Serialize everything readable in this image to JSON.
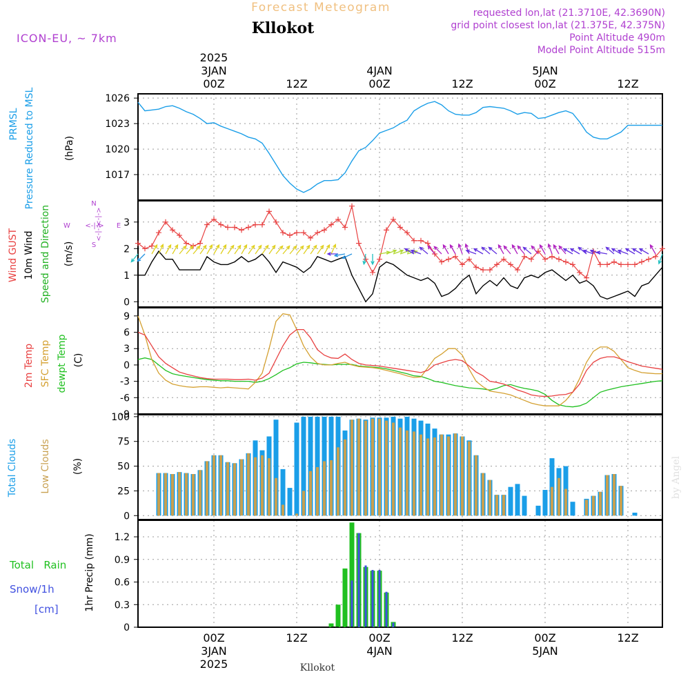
{
  "header": {
    "product": "Forecast Meteogram",
    "location": "Kllokot",
    "model": "ICON-EU, ~ 7km",
    "requested": "requested lon,lat (21.3710E, 42.3690N)",
    "grid_point": "grid point closest lon,lat (21.375E, 42.375N)",
    "point_altitude": "Point Altitude 490m",
    "model_altitude": "Model Point Altitude 515m",
    "footer_location": "Kllokot",
    "watermark": "by Angel"
  },
  "colors": {
    "pressure": "#1a9ee8",
    "gust": "#e84040",
    "wind": "#000000",
    "dir_label": "#20b020",
    "temp2m": "#e84040",
    "sfc": "#d4a030",
    "dewpt": "#20c020",
    "total_clouds": "#1a9ee8",
    "low_clouds": "#c8a050",
    "rain": "#20c020",
    "snow": "#4050e0",
    "header_orange": "#f0c080",
    "header_purple": "#b040d0"
  },
  "time_axis": {
    "top_dates": [
      {
        "hour": 0,
        "lines": [
          "2025",
          "3JAN",
          "00Z"
        ]
      },
      {
        "hour": 12,
        "lines": [
          "12Z"
        ]
      },
      {
        "hour": 24,
        "lines": [
          "4JAN",
          "00Z"
        ]
      },
      {
        "hour": 36,
        "lines": [
          "12Z"
        ]
      },
      {
        "hour": 48,
        "lines": [
          "5JAN",
          "00Z"
        ]
      },
      {
        "hour": 60,
        "lines": [
          "12Z"
        ]
      }
    ],
    "bottom_dates": [
      {
        "hour": 0,
        "lines": [
          "00Z",
          "3JAN",
          "2025"
        ]
      },
      {
        "hour": 12,
        "lines": [
          "12Z"
        ]
      },
      {
        "hour": 24,
        "lines": [
          "00Z",
          "4JAN"
        ]
      },
      {
        "hour": 36,
        "lines": [
          "12Z"
        ]
      },
      {
        "hour": 48,
        "lines": [
          "00Z",
          "5JAN"
        ]
      },
      {
        "hour": 60,
        "lines": [
          "12Z"
        ]
      }
    ],
    "range_hours": [
      -11,
      65
    ]
  },
  "panel_labels": {
    "pressure": [
      "PRMSL",
      "Pressure Reduced to MSL"
    ],
    "pressure_unit": "(hPa)",
    "wind_gust": "Wind GUST",
    "wind_10m": "10m Wind",
    "wind_dir": "Speed and Direction",
    "wind_unit": "(m/s)",
    "compass_n": "N",
    "compass_s": "S",
    "compass_w": "W",
    "compass_e": "E",
    "compass_axis": "<-|->",
    "temp_2m": "2m Temp",
    "temp_sfc": "SFC Temp",
    "temp_dew": "dewpt Temp",
    "temp_unit": "(C)",
    "clouds_total": "Total Clouds",
    "clouds_low": "Low Clouds",
    "clouds_unit": "(%)",
    "precip_rain": "Total   Rain",
    "precip_snow": "Snow/1h",
    "precip_snow_unit": "[cm]",
    "precip_axis": "1hr Precip (mm)"
  },
  "chart_data": [
    {
      "type": "line",
      "name": "pressure",
      "ylim": [
        1014,
        1026.5
      ],
      "yticks": [
        1017,
        1020,
        1023,
        1026
      ],
      "x": [
        -11,
        -10,
        -9,
        -8,
        -7,
        -6,
        -5,
        -4,
        -3,
        -2,
        -1,
        0,
        1,
        2,
        3,
        4,
        5,
        6,
        7,
        8,
        9,
        10,
        11,
        12,
        13,
        14,
        15,
        16,
        17,
        18,
        19,
        20,
        21,
        22,
        23,
        24,
        25,
        26,
        27,
        28,
        29,
        30,
        31,
        32,
        33,
        34,
        35,
        36,
        37,
        38,
        39,
        40,
        41,
        42,
        43,
        44,
        45,
        46,
        47,
        48,
        49,
        50,
        51,
        52,
        53,
        54,
        55,
        56,
        57,
        58,
        59,
        60,
        61,
        62,
        63,
        64,
        65
      ],
      "y": [
        1025.5,
        1024.5,
        1024.6,
        1024.7,
        1025.0,
        1025.1,
        1024.8,
        1024.4,
        1024.1,
        1023.6,
        1023.0,
        1023.1,
        1022.7,
        1022.4,
        1022.1,
        1021.8,
        1021.4,
        1021.2,
        1020.7,
        1019.5,
        1018.2,
        1016.9,
        1016.0,
        1015.3,
        1014.9,
        1015.3,
        1015.9,
        1016.3,
        1016.3,
        1016.4,
        1017.2,
        1018.6,
        1019.8,
        1020.2,
        1021.0,
        1021.9,
        1022.2,
        1022.5,
        1023.0,
        1023.4,
        1024.5,
        1025.0,
        1025.4,
        1025.6,
        1025.2,
        1024.5,
        1024.1,
        1024.0,
        1024.0,
        1024.3,
        1024.9,
        1025.0,
        1024.9,
        1024.8,
        1024.5,
        1024.1,
        1024.3,
        1024.2,
        1023.6,
        1023.7,
        1024.0,
        1024.3,
        1024.5,
        1024.2,
        1023.2,
        1022.0,
        1021.4,
        1021.2,
        1021.2,
        1021.6,
        1022.0,
        1022.8,
        1022.8,
        1022.8,
        1022.8,
        1022.8,
        1022.8
      ]
    },
    {
      "type": "line",
      "name": "wind",
      "ylim": [
        -0.2,
        3.8
      ],
      "yticks": [
        0,
        1,
        2,
        3
      ],
      "gust_x": [
        -11,
        -10,
        -9,
        -8,
        -7,
        -6,
        -5,
        -4,
        -3,
        -2,
        -1,
        0,
        1,
        2,
        3,
        4,
        5,
        6,
        7,
        8,
        9,
        10,
        11,
        12,
        13,
        14,
        15,
        16,
        17,
        18,
        19,
        20,
        21,
        22,
        23,
        24,
        25,
        26,
        27,
        28,
        29,
        30,
        31,
        32,
        33,
        34,
        35,
        36,
        37,
        38,
        39,
        40,
        41,
        42,
        43,
        44,
        45,
        46,
        47,
        48,
        49,
        50,
        51,
        52,
        53,
        54,
        55,
        56,
        57,
        58,
        59,
        60,
        61,
        62,
        63,
        64,
        65
      ],
      "gust": [
        2.2,
        2.0,
        2.1,
        2.6,
        3.0,
        2.7,
        2.5,
        2.2,
        2.1,
        2.2,
        2.9,
        3.1,
        2.9,
        2.8,
        2.8,
        2.7,
        2.8,
        2.9,
        2.9,
        3.4,
        3.0,
        2.6,
        2.5,
        2.6,
        2.6,
        2.4,
        2.6,
        2.7,
        2.9,
        3.1,
        2.8,
        3.6,
        2.2,
        1.6,
        1.1,
        1.6,
        2.7,
        3.1,
        2.8,
        2.6,
        2.3,
        2.3,
        2.2,
        1.8,
        1.5,
        1.6,
        1.7,
        1.4,
        1.6,
        1.3,
        1.2,
        1.2,
        1.4,
        1.6,
        1.4,
        1.2,
        1.7,
        1.6,
        1.9,
        1.6,
        1.7,
        1.6,
        1.5,
        1.4,
        1.1,
        0.9,
        1.9,
        1.4,
        1.4,
        1.5,
        1.4,
        1.4,
        1.4,
        1.5,
        1.6,
        1.7,
        2.0
      ],
      "wind_x": [
        -11,
        -10,
        -9,
        -8,
        -7,
        -6,
        -5,
        -4,
        -3,
        -2,
        -1,
        0,
        1,
        2,
        3,
        4,
        5,
        6,
        7,
        8,
        9,
        10,
        11,
        12,
        13,
        14,
        15,
        16,
        17,
        18,
        19,
        20,
        21,
        22,
        23,
        24,
        25,
        26,
        27,
        28,
        29,
        30,
        31,
        32,
        33,
        34,
        35,
        36,
        37,
        38,
        39,
        40,
        41,
        42,
        43,
        44,
        45,
        46,
        47,
        48,
        49,
        50,
        51,
        52,
        53,
        54,
        55,
        56,
        57,
        58,
        59,
        60,
        61,
        62,
        63,
        64,
        65
      ],
      "wind": [
        1.0,
        1.0,
        1.5,
        1.9,
        1.6,
        1.6,
        1.2,
        1.2,
        1.2,
        1.2,
        1.7,
        1.5,
        1.4,
        1.4,
        1.5,
        1.7,
        1.5,
        1.6,
        1.8,
        1.5,
        1.1,
        1.5,
        1.4,
        1.3,
        1.1,
        1.3,
        1.7,
        1.6,
        1.5,
        1.6,
        1.7,
        1.0,
        0.5,
        0.0,
        0.3,
        1.3,
        1.5,
        1.4,
        1.2,
        1.0,
        0.9,
        0.8,
        0.9,
        0.7,
        0.2,
        0.3,
        0.5,
        0.8,
        1.0,
        0.3,
        0.6,
        0.8,
        0.6,
        0.9,
        0.6,
        0.5,
        0.9,
        1.0,
        0.9,
        1.1,
        1.2,
        1.0,
        0.8,
        1.0,
        0.7,
        0.8,
        0.6,
        0.2,
        0.1,
        0.2,
        0.3,
        0.4,
        0.2,
        0.6,
        0.7,
        1.0,
        1.3
      ],
      "dirs_x": [
        -11,
        -10,
        -9,
        -8,
        -7,
        -6,
        -5,
        -4,
        -3,
        -2,
        -1,
        0,
        1,
        2,
        3,
        4,
        5,
        6,
        7,
        8,
        9,
        10,
        11,
        12,
        13,
        14,
        15,
        16,
        17,
        18,
        19,
        20,
        22,
        23,
        24,
        25,
        26,
        27,
        28,
        29,
        30,
        31,
        32,
        33,
        34,
        35,
        36,
        37,
        38,
        39,
        40,
        41,
        42,
        43,
        44,
        45,
        46,
        47,
        48,
        49,
        50,
        51,
        52,
        53,
        54,
        55,
        56,
        57,
        58,
        59,
        60,
        61,
        62,
        63,
        64,
        65
      ],
      "dirs_deg": [
        220,
        225,
        30,
        25,
        30,
        30,
        40,
        40,
        40,
        35,
        30,
        30,
        30,
        35,
        35,
        30,
        35,
        35,
        35,
        35,
        40,
        40,
        40,
        40,
        35,
        35,
        35,
        30,
        25,
        270,
        260,
        245,
        190,
        180,
        80,
        70,
        70,
        70,
        75,
        300,
        290,
        310,
        320,
        315,
        330,
        330,
        340,
        340,
        290,
        300,
        310,
        310,
        330,
        320,
        330,
        320,
        310,
        320,
        330,
        340,
        330,
        320,
        300,
        300,
        310,
        290,
        290,
        280,
        310,
        300,
        290,
        300,
        300,
        300,
        330,
        200
      ]
    },
    {
      "type": "line",
      "name": "temperature",
      "ylim": [
        -9,
        10.5
      ],
      "yticks": [
        -9,
        -6,
        -3,
        0,
        3,
        6,
        9
      ],
      "x": [
        -11,
        -10,
        -9,
        -8,
        -7,
        -6,
        -5,
        -4,
        -3,
        -2,
        -1,
        0,
        1,
        2,
        3,
        4,
        5,
        6,
        7,
        8,
        9,
        10,
        11,
        12,
        13,
        14,
        15,
        16,
        17,
        18,
        19,
        20,
        21,
        22,
        23,
        24,
        25,
        26,
        27,
        28,
        29,
        30,
        31,
        32,
        33,
        34,
        35,
        36,
        37,
        38,
        39,
        40,
        41,
        42,
        43,
        44,
        45,
        46,
        47,
        48,
        49,
        50,
        51,
        52,
        53,
        54,
        55,
        56,
        57,
        58,
        59,
        60,
        61,
        62,
        63,
        64,
        65
      ],
      "t2m": [
        6.0,
        5.5,
        3.5,
        1.5,
        0.3,
        -0.5,
        -1.3,
        -1.7,
        -2.0,
        -2.3,
        -2.5,
        -2.6,
        -2.6,
        -2.6,
        -2.7,
        -2.7,
        -2.6,
        -2.8,
        -2.4,
        -1.5,
        1.0,
        3.5,
        5.5,
        6.5,
        6.5,
        5.0,
        2.8,
        1.8,
        1.3,
        1.2,
        2.0,
        1.0,
        0.3,
        0.0,
        -0.1,
        -0.2,
        -0.4,
        -0.6,
        -0.8,
        -1.0,
        -1.2,
        -1.4,
        -1.0,
        0.0,
        0.4,
        0.8,
        1.0,
        0.8,
        -0.2,
        -1.3,
        -2.0,
        -3.0,
        -3.2,
        -3.5,
        -4.0,
        -4.6,
        -5.0,
        -5.5,
        -5.7,
        -5.8,
        -5.7,
        -5.5,
        -5.4,
        -5.0,
        -3.5,
        -1.0,
        0.5,
        1.2,
        1.5,
        1.5,
        1.1,
        0.6,
        0.2,
        -0.2,
        -0.4,
        -0.6,
        -0.8
      ],
      "sfc": [
        9.0,
        5.5,
        1.0,
        -1.5,
        -2.8,
        -3.5,
        -3.8,
        -4.0,
        -4.1,
        -4.0,
        -4.0,
        -4.1,
        -4.2,
        -4.1,
        -4.2,
        -4.3,
        -4.4,
        -3.2,
        -1.5,
        3.0,
        8.0,
        9.4,
        9.2,
        6.5,
        3.5,
        1.5,
        0.3,
        0.0,
        0.0,
        0.3,
        0.5,
        0.0,
        -0.3,
        -0.4,
        -0.5,
        -0.7,
        -1.0,
        -1.3,
        -1.6,
        -2.0,
        -2.3,
        -2.2,
        -0.5,
        1.2,
        2.0,
        3.0,
        3.0,
        1.8,
        -0.8,
        -3.0,
        -4.0,
        -4.8,
        -5.0,
        -5.2,
        -5.5,
        -6.0,
        -6.5,
        -7.0,
        -7.3,
        -7.5,
        -7.5,
        -7.5,
        -6.5,
        -5.0,
        -2.5,
        0.5,
        2.5,
        3.3,
        3.3,
        2.5,
        1.0,
        -0.5,
        -1.0,
        -1.4,
        -1.5,
        -1.6,
        -1.6
      ],
      "dew": [
        1.0,
        1.3,
        1.0,
        0.0,
        -1.0,
        -1.6,
        -1.9,
        -2.1,
        -2.3,
        -2.5,
        -2.7,
        -2.8,
        -2.9,
        -2.9,
        -3.0,
        -3.0,
        -3.0,
        -3.2,
        -3.0,
        -2.5,
        -1.8,
        -1.0,
        -0.5,
        0.2,
        0.5,
        0.4,
        0.2,
        0.1,
        0.0,
        0.1,
        0.1,
        0.1,
        -0.2,
        -0.3,
        -0.4,
        -0.5,
        -0.7,
        -1.0,
        -1.3,
        -1.6,
        -2.0,
        -2.1,
        -2.5,
        -3.0,
        -3.2,
        -3.5,
        -3.8,
        -4.0,
        -4.2,
        -4.3,
        -4.4,
        -4.6,
        -4.3,
        -3.8,
        -3.6,
        -4.0,
        -4.3,
        -4.5,
        -4.8,
        -5.4,
        -6.5,
        -7.3,
        -7.6,
        -7.7,
        -7.5,
        -7.0,
        -6.0,
        -5.0,
        -4.6,
        -4.3,
        -4.0,
        -3.8,
        -3.6,
        -3.4,
        -3.2,
        -3.0,
        -2.9
      ]
    },
    {
      "type": "bar",
      "name": "clouds",
      "ylim": [
        -4,
        102
      ],
      "yticks": [
        0,
        25,
        50,
        75,
        100
      ],
      "x": [
        -11,
        -10,
        -9,
        -8,
        -7,
        -6,
        -5,
        -4,
        -3,
        -2,
        -1,
        0,
        1,
        2,
        3,
        4,
        5,
        6,
        7,
        8,
        9,
        10,
        11,
        12,
        13,
        14,
        15,
        16,
        17,
        18,
        19,
        20,
        21,
        22,
        23,
        24,
        25,
        26,
        27,
        28,
        29,
        30,
        31,
        32,
        33,
        34,
        35,
        36,
        37,
        38,
        39,
        40,
        41,
        42,
        43,
        44,
        45,
        46,
        47,
        48,
        49,
        50,
        51,
        52,
        53,
        54,
        55,
        56,
        57,
        58,
        59,
        60,
        61,
        62,
        63,
        64,
        65
      ],
      "total": [
        0,
        0,
        0,
        43,
        43,
        42,
        44,
        43,
        42,
        46,
        55,
        61,
        61,
        54,
        53,
        57,
        63,
        76,
        66,
        80,
        97,
        47,
        28,
        94,
        100,
        100,
        100,
        100,
        100,
        100,
        86,
        97,
        98,
        97,
        99,
        99,
        99,
        100,
        98,
        100,
        98,
        96,
        93,
        88,
        82,
        82,
        83,
        80,
        76,
        61,
        43,
        36,
        21,
        21,
        29,
        32,
        20,
        0,
        10,
        26,
        58,
        48,
        50,
        14,
        0,
        17,
        20,
        24,
        41,
        42,
        30,
        0,
        3,
        0,
        0,
        0,
        0
      ],
      "low": [
        0,
        0,
        0,
        43,
        43,
        42,
        44,
        43,
        42,
        46,
        55,
        61,
        61,
        54,
        53,
        57,
        63,
        59,
        61,
        58,
        38,
        11,
        0,
        2,
        25,
        45,
        49,
        55,
        56,
        69,
        77,
        97,
        98,
        96,
        98,
        98,
        96,
        94,
        89,
        86,
        85,
        82,
        78,
        79,
        82,
        80,
        83,
        80,
        75,
        61,
        43,
        36,
        21,
        21,
        0,
        0,
        0,
        0,
        0,
        0,
        29,
        38,
        27,
        0,
        0,
        16,
        20,
        24,
        41,
        42,
        30,
        0,
        0,
        0,
        0,
        0,
        0
      ]
    },
    {
      "type": "bar",
      "name": "precip",
      "ylim": [
        0,
        1.42
      ],
      "yticks": [
        0,
        0.3,
        0.6,
        0.9,
        1.2
      ],
      "x": [
        17,
        18,
        19,
        20,
        21,
        22,
        23,
        24,
        25,
        26,
        27,
        28
      ],
      "rain": [
        0.05,
        0.3,
        0.78,
        1.39,
        1.25,
        0.8,
        0.75,
        0.75,
        0.46,
        0.07,
        0.0,
        0.0
      ],
      "snow": [
        0.0,
        0.0,
        0.0,
        0.62,
        1.25,
        0.82,
        0.76,
        0.76,
        0.47,
        0.06,
        0.0,
        0.0
      ]
    }
  ]
}
